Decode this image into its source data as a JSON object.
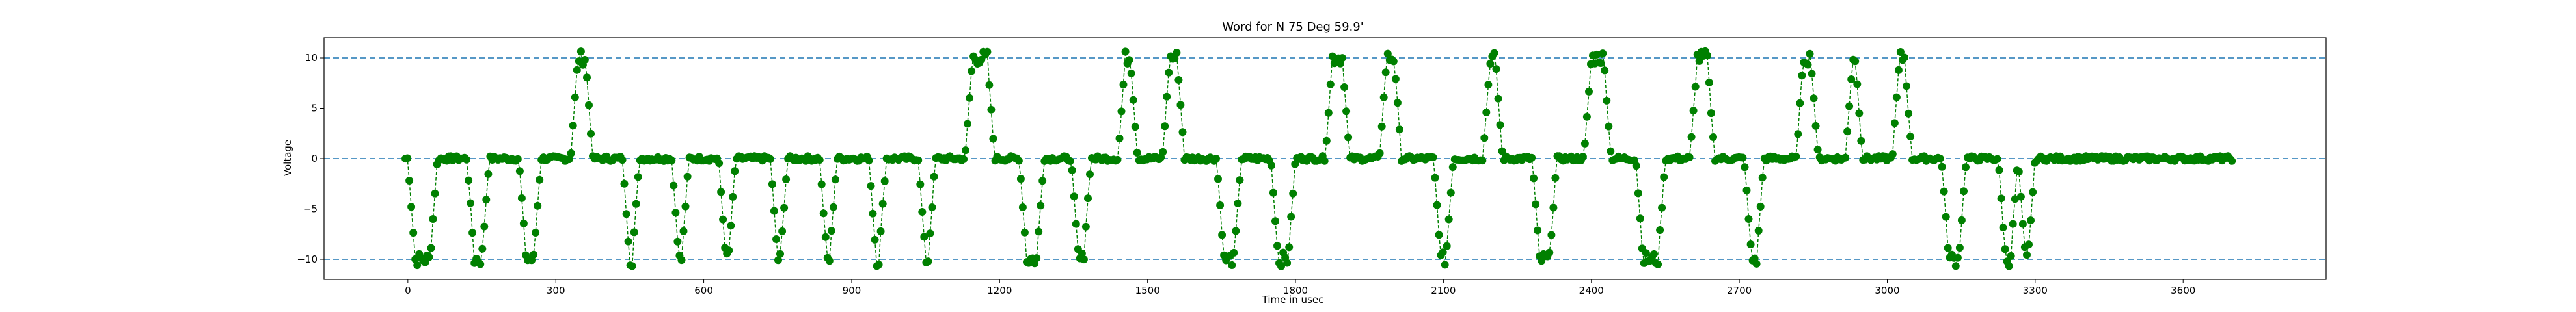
{
  "chart_data": {
    "type": "line",
    "title": "Word for N 75 Deg 59.9'",
    "xlabel": "Time in usec",
    "ylabel": "Voltage",
    "xlim": [
      -170,
      3890
    ],
    "ylim": [
      -12,
      12
    ],
    "xticks": [
      0,
      300,
      600,
      900,
      1200,
      1500,
      1800,
      2100,
      2400,
      2700,
      3000,
      3300,
      3600
    ],
    "yticks": [
      -10,
      -5,
      0,
      5,
      10
    ],
    "reference_lines": [
      -10,
      0,
      10
    ],
    "grid": false,
    "legend": "none",
    "colors": {
      "series": "#008000",
      "reference": "#1f77b4"
    },
    "series": [
      {
        "marker": "circle",
        "linestyle": "dashed",
        "pulses": [
          {
            "start": 0,
            "end": 60,
            "level": -10
          },
          {
            "start": 120,
            "end": 165,
            "level": -10
          },
          {
            "start": 225,
            "end": 270,
            "level": -10
          },
          {
            "start": 330,
            "end": 375,
            "level": 10
          },
          {
            "start": 435,
            "end": 470,
            "level": -10
          },
          {
            "start": 535,
            "end": 570,
            "level": -10
          },
          {
            "start": 630,
            "end": 665,
            "level": -10
          },
          {
            "start": 735,
            "end": 770,
            "level": -10
          },
          {
            "start": 835,
            "end": 870,
            "level": -10
          },
          {
            "start": 935,
            "end": 970,
            "level": -10
          },
          {
            "start": 1035,
            "end": 1070,
            "level": -10
          },
          {
            "start": 1130,
            "end": 1190,
            "level": 10
          },
          {
            "start": 1240,
            "end": 1290,
            "level": -10
          },
          {
            "start": 1345,
            "end": 1385,
            "level": -10
          },
          {
            "start": 1440,
            "end": 1480,
            "level": 10
          },
          {
            "start": 1530,
            "end": 1575,
            "level": 10
          },
          {
            "start": 1640,
            "end": 1690,
            "level": -10
          },
          {
            "start": 1750,
            "end": 1800,
            "level": -10
          },
          {
            "start": 1860,
            "end": 1910,
            "level": 10
          },
          {
            "start": 1970,
            "end": 2015,
            "level": 10
          },
          {
            "start": 2080,
            "end": 2120,
            "level": -10
          },
          {
            "start": 2180,
            "end": 2220,
            "level": 10
          },
          {
            "start": 2280,
            "end": 2330,
            "level": -10
          },
          {
            "start": 2385,
            "end": 2440,
            "level": 10
          },
          {
            "start": 2490,
            "end": 2550,
            "level": -10
          },
          {
            "start": 2600,
            "end": 2650,
            "level": 10
          },
          {
            "start": 2710,
            "end": 2750,
            "level": -10
          },
          {
            "start": 2815,
            "end": 2860,
            "level": 10
          },
          {
            "start": 2915,
            "end": 2950,
            "level": 10
          },
          {
            "start": 3010,
            "end": 3050,
            "level": 10
          },
          {
            "start": 3110,
            "end": 3160,
            "level": -10
          },
          {
            "start": 3225,
            "end": 3265,
            "level": -10
          },
          {
            "start": 3265,
            "end": 3300,
            "level": -10
          }
        ],
        "end_time": 3700,
        "sample_step": 4,
        "sample_start": -5
      }
    ]
  }
}
